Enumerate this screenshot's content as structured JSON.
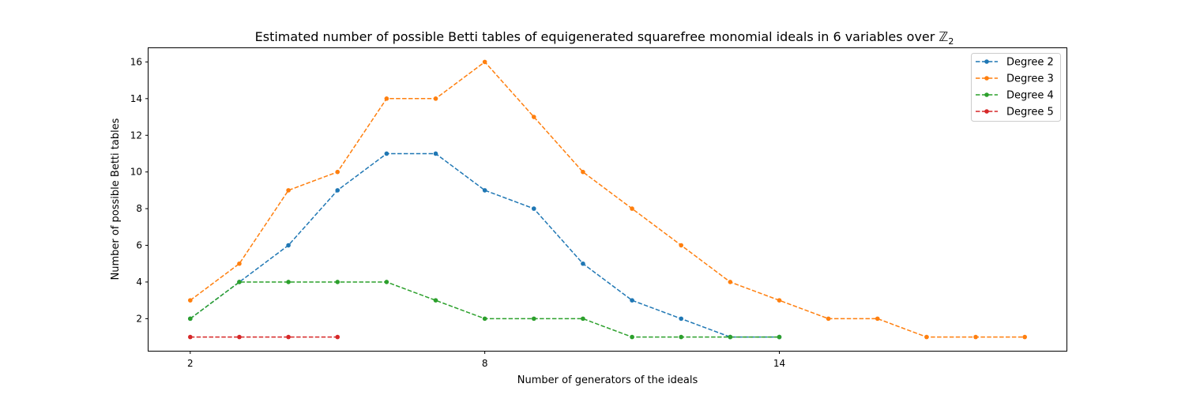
{
  "chart_data": {
    "type": "line",
    "title": "Estimated number of possible Betti tables of equigenerated squarefree monomial ideals in 6 variables over",
    "title_symbol": "ℤ",
    "title_subscript": "2",
    "xlabel": "Number of generators of the ideals",
    "ylabel": "Number of possible Betti tables",
    "xlim": [
      1.15,
      19.85
    ],
    "ylim": [
      0.25,
      16.75
    ],
    "xticks": [
      2,
      8,
      14
    ],
    "yticks": [
      2,
      4,
      6,
      8,
      10,
      12,
      14,
      16
    ],
    "grid": false,
    "legend_position": "top-right",
    "series": [
      {
        "name": "Degree 2",
        "color": "#1f77b4",
        "x": [
          2,
          3,
          4,
          5,
          6,
          7,
          8,
          9,
          10,
          11,
          12,
          13,
          14
        ],
        "y": [
          2,
          4,
          6,
          9,
          11,
          11,
          9,
          8,
          5,
          3,
          2,
          1,
          1
        ]
      },
      {
        "name": "Degree 3",
        "color": "#ff7f0e",
        "x": [
          2,
          3,
          4,
          5,
          6,
          7,
          8,
          9,
          10,
          11,
          12,
          13,
          14,
          15,
          16,
          17,
          18,
          19
        ],
        "y": [
          3,
          5,
          9,
          10,
          14,
          14,
          16,
          13,
          10,
          8,
          6,
          4,
          3,
          2,
          2,
          1,
          1,
          1
        ]
      },
      {
        "name": "Degree 4",
        "color": "#2ca02c",
        "x": [
          2,
          3,
          4,
          5,
          6,
          7,
          8,
          9,
          10,
          11,
          12,
          13,
          14
        ],
        "y": [
          2,
          4,
          4,
          4,
          4,
          3,
          2,
          2,
          2,
          1,
          1,
          1,
          1
        ]
      },
      {
        "name": "Degree 5",
        "color": "#d62728",
        "x": [
          2,
          3,
          4,
          5
        ],
        "y": [
          1,
          1,
          1,
          1
        ]
      }
    ]
  }
}
